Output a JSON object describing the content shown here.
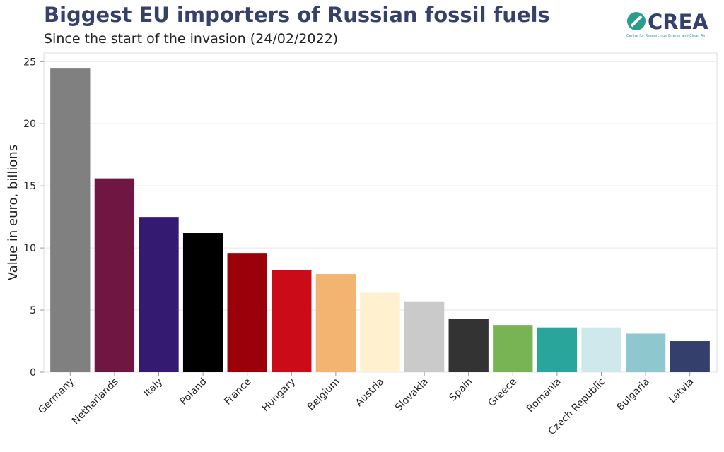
{
  "chart_data": {
    "type": "bar",
    "title": "Biggest EU importers of Russian fossil fuels",
    "subtitle": "Since the start of the invasion (24/02/2022)",
    "y_label": "Value in euro, billions",
    "categories": [
      "Germany",
      "Netherlands",
      "Italy",
      "Poland",
      "France",
      "Hungary",
      "Belgium",
      "Austria",
      "Slovakia",
      "Spain",
      "Greece",
      "Romania",
      "Czech Republic",
      "Bulgaria",
      "Latvia"
    ],
    "values": [
      24.5,
      15.6,
      12.5,
      11.2,
      9.6,
      8.2,
      7.9,
      6.4,
      5.7,
      4.3,
      3.8,
      3.6,
      3.6,
      3.1,
      2.5
    ],
    "colors": [
      "#808080",
      "#6f1643",
      "#341a70",
      "#000000",
      "#990009",
      "#cb0b17",
      "#f3b371",
      "#fff0d0",
      "#cacaca",
      "#333333",
      "#78b454",
      "#29a59c",
      "#cfe8ec",
      "#8ec8ce",
      "#353f6b"
    ],
    "ylim": [
      0,
      25.7
    ],
    "yticks": [
      0,
      5,
      10,
      15,
      20,
      25
    ],
    "grid": true
  },
  "logo": {
    "name": "CREA",
    "tagline": "Centre for Research on Energy and Clean Air"
  }
}
